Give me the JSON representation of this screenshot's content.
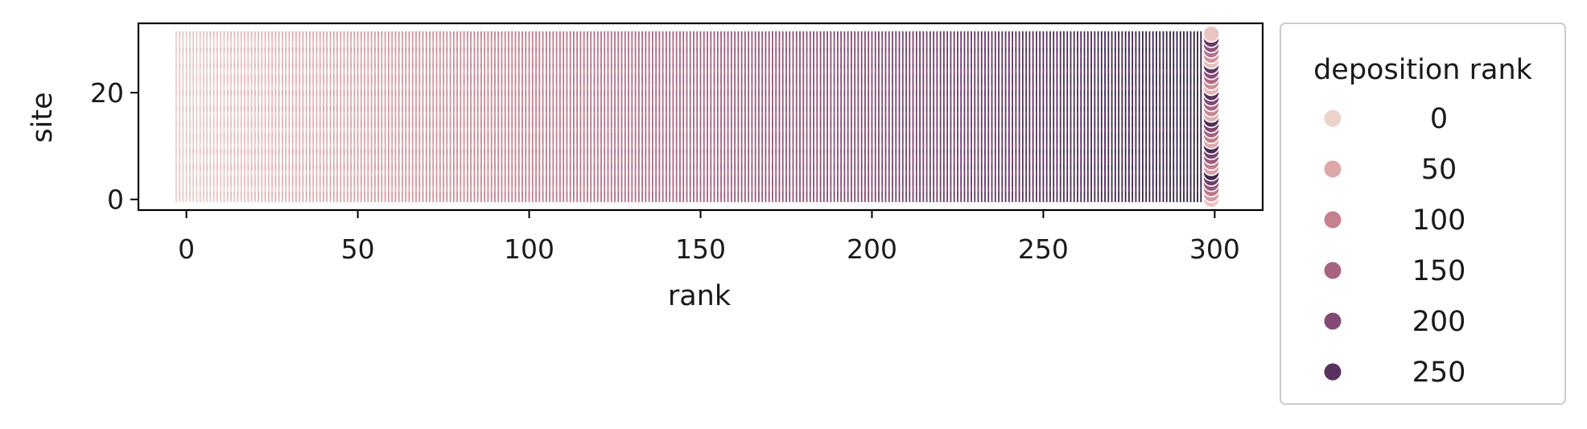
{
  "chart_data": {
    "type": "scatter",
    "title": "",
    "xlabel": "rank",
    "ylabel": "site",
    "xlim": [
      -14,
      314
    ],
    "ylim": [
      -2,
      33
    ],
    "x_ticks": [
      0,
      50,
      100,
      150,
      200,
      250,
      300
    ],
    "y_ticks": [
      0,
      20
    ],
    "grid": false,
    "point_grid": {
      "x_start": -3,
      "x_end": 299,
      "x_step": 1,
      "y_start": 0,
      "y_end": 31,
      "y_step": 1,
      "hue_variable": "deposition rank",
      "hue_range": [
        0,
        299
      ]
    },
    "legend": {
      "title": "deposition rank",
      "placement": "outside-right",
      "entries": [
        {
          "label": "0",
          "color": "#edd1cb"
        },
        {
          "label": "50",
          "color": "#dca8a9"
        },
        {
          "label": "100",
          "color": "#c6818f"
        },
        {
          "label": "150",
          "color": "#a96382"
        },
        {
          "label": "200",
          "color": "#834a73"
        },
        {
          "label": "250",
          "color": "#5a325f"
        }
      ]
    },
    "color_scale": [
      "#edd1cb",
      "#dca8a9",
      "#c6818f",
      "#a96382",
      "#834a73",
      "#5a325f",
      "#2d1e3e"
    ]
  }
}
